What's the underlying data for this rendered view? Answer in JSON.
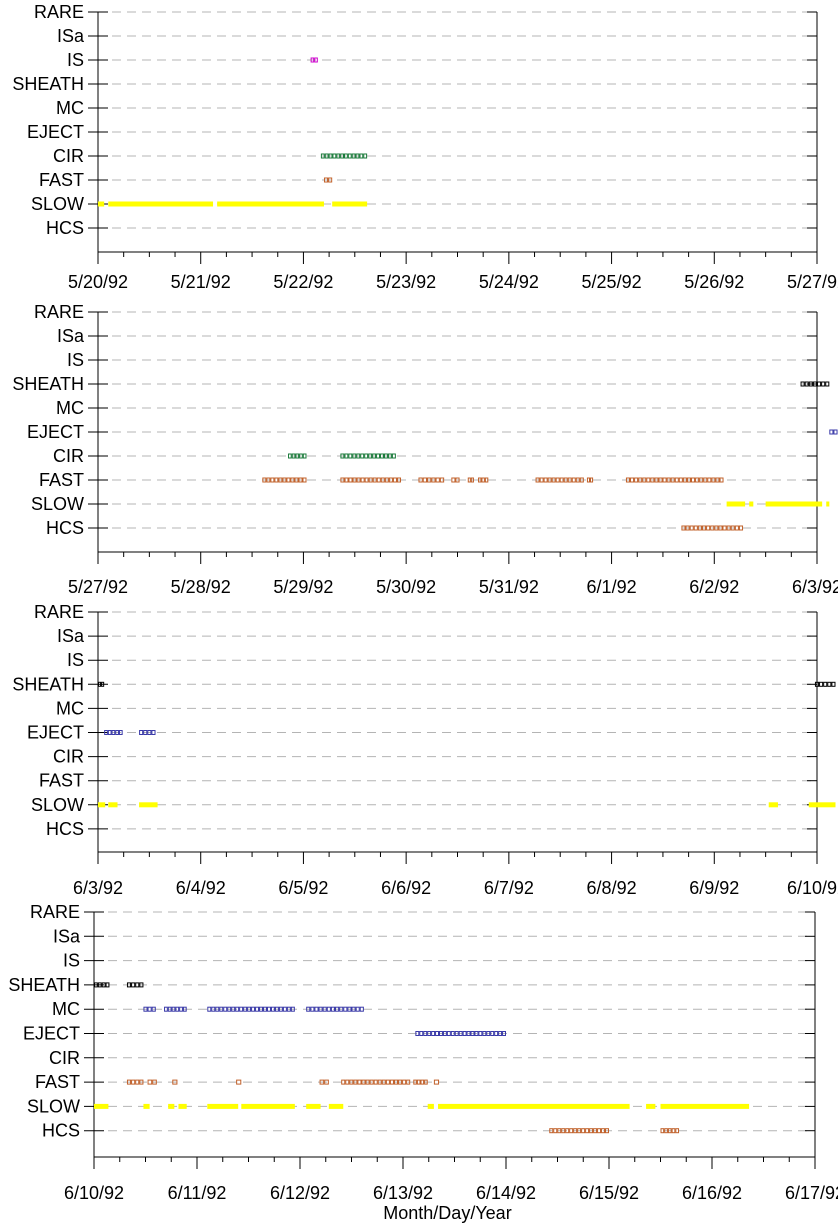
{
  "chart_data": {
    "type": "timeline",
    "categories": [
      "RARE",
      "ISa",
      "IS",
      "SHEATH",
      "MC",
      "EJECT",
      "CIR",
      "FAST",
      "SLOW",
      "HCS"
    ],
    "xlabel": "Month/Day/Year",
    "grid": true,
    "colors": {
      "IS": "#cc00cc",
      "SHEATH": "#000000",
      "MC": "#3a3aa8",
      "EJECT": "#3a3aa8",
      "CIR": "#1a7a3a",
      "FAST": "#c0602a",
      "SLOW": "#ffff00",
      "HCS": "#c0602a"
    },
    "panels": [
      {
        "start_day": 0,
        "tick_labels": [
          "5/20/92",
          "5/21/92",
          "5/22/92",
          "5/23/92",
          "5/24/92",
          "5/25/92",
          "5/26/92",
          "5/27/92"
        ],
        "segments": [
          {
            "cat": "IS",
            "start": 2.07,
            "end": 2.14
          },
          {
            "cat": "CIR",
            "start": 2.17,
            "end": 2.62
          },
          {
            "cat": "FAST",
            "start": 2.2,
            "end": 2.28
          },
          {
            "cat": "SLOW",
            "start": 0.0,
            "end": 0.06
          },
          {
            "cat": "SLOW",
            "start": 0.1,
            "end": 1.12
          },
          {
            "cat": "SLOW",
            "start": 1.16,
            "end": 2.2
          },
          {
            "cat": "SLOW",
            "start": 2.28,
            "end": 2.62
          }
        ]
      },
      {
        "start_day": 7,
        "tick_labels": [
          "5/27/92",
          "5/28/92",
          "5/29/92",
          "5/30/92",
          "5/31/92",
          "6/1/92",
          "6/2/92",
          "6/3/92"
        ],
        "segments": [
          {
            "cat": "SHEATH",
            "start": 6.84,
            "end": 7.12
          },
          {
            "cat": "EJECT",
            "start": 7.12,
            "end": 7.2
          },
          {
            "cat": "CIR",
            "start": 1.85,
            "end": 2.03
          },
          {
            "cat": "CIR",
            "start": 2.36,
            "end": 2.9
          },
          {
            "cat": "FAST",
            "start": 1.6,
            "end": 2.03
          },
          {
            "cat": "FAST",
            "start": 2.36,
            "end": 2.95
          },
          {
            "cat": "FAST",
            "start": 3.12,
            "end": 3.37
          },
          {
            "cat": "FAST",
            "start": 3.44,
            "end": 3.52
          },
          {
            "cat": "FAST",
            "start": 3.6,
            "end": 3.66
          },
          {
            "cat": "FAST",
            "start": 3.7,
            "end": 3.8
          },
          {
            "cat": "FAST",
            "start": 4.26,
            "end": 4.73
          },
          {
            "cat": "FAST",
            "start": 4.76,
            "end": 4.82
          },
          {
            "cat": "FAST",
            "start": 5.14,
            "end": 6.09
          },
          {
            "cat": "SLOW",
            "start": 6.12,
            "end": 6.3
          },
          {
            "cat": "SLOW",
            "start": 6.34,
            "end": 6.38
          },
          {
            "cat": "SLOW",
            "start": 6.5,
            "end": 7.05
          },
          {
            "cat": "SLOW",
            "start": 7.09,
            "end": 7.12
          },
          {
            "cat": "HCS",
            "start": 5.68,
            "end": 6.28
          }
        ]
      },
      {
        "start_day": 14,
        "tick_labels": [
          "6/3/92",
          "6/4/92",
          "6/5/92",
          "6/6/92",
          "6/7/92",
          "6/8/92",
          "6/9/92",
          "6/10/92"
        ],
        "segments": [
          {
            "cat": "SHEATH",
            "start": 0.0,
            "end": 0.06
          },
          {
            "cat": "SHEATH",
            "start": 6.98,
            "end": 7.18
          },
          {
            "cat": "EJECT",
            "start": 0.06,
            "end": 0.24
          },
          {
            "cat": "EJECT",
            "start": 0.4,
            "end": 0.56
          },
          {
            "cat": "SLOW",
            "start": 0.0,
            "end": 0.07
          },
          {
            "cat": "SLOW",
            "start": 0.1,
            "end": 0.19
          },
          {
            "cat": "SLOW",
            "start": 0.4,
            "end": 0.58
          },
          {
            "cat": "SLOW",
            "start": 6.53,
            "end": 6.62
          },
          {
            "cat": "SLOW",
            "start": 6.92,
            "end": 7.18
          }
        ]
      },
      {
        "start_day": 21,
        "tick_labels": [
          "6/10/92",
          "6/11/92",
          "6/12/92",
          "6/13/92",
          "6/14/92",
          "6/15/92",
          "6/16/92",
          "6/17/92"
        ],
        "segments": [
          {
            "cat": "SHEATH",
            "start": 0.0,
            "end": 0.15
          },
          {
            "cat": "SHEATH",
            "start": 0.32,
            "end": 0.48
          },
          {
            "cat": "MC",
            "start": 0.48,
            "end": 0.6
          },
          {
            "cat": "MC",
            "start": 0.68,
            "end": 0.9
          },
          {
            "cat": "MC",
            "start": 1.1,
            "end": 1.95
          },
          {
            "cat": "MC",
            "start": 2.06,
            "end": 2.62
          },
          {
            "cat": "EJECT",
            "start": 3.12,
            "end": 4.0
          },
          {
            "cat": "FAST",
            "start": 0.32,
            "end": 0.48
          },
          {
            "cat": "FAST",
            "start": 0.52,
            "end": 0.61
          },
          {
            "cat": "FAST",
            "start": 0.76,
            "end": 0.81
          },
          {
            "cat": "FAST",
            "start": 1.38,
            "end": 1.43
          },
          {
            "cat": "FAST",
            "start": 2.19,
            "end": 2.28
          },
          {
            "cat": "FAST",
            "start": 2.4,
            "end": 3.07
          },
          {
            "cat": "FAST",
            "start": 3.1,
            "end": 3.24
          },
          {
            "cat": "FAST",
            "start": 3.3,
            "end": 3.35
          },
          {
            "cat": "SLOW",
            "start": 0.0,
            "end": 0.14
          },
          {
            "cat": "SLOW",
            "start": 0.48,
            "end": 0.54
          },
          {
            "cat": "SLOW",
            "start": 0.72,
            "end": 0.78
          },
          {
            "cat": "SLOW",
            "start": 0.82,
            "end": 0.9
          },
          {
            "cat": "SLOW",
            "start": 1.1,
            "end": 1.4
          },
          {
            "cat": "SLOW",
            "start": 1.43,
            "end": 1.95
          },
          {
            "cat": "SLOW",
            "start": 2.06,
            "end": 2.2
          },
          {
            "cat": "SLOW",
            "start": 2.28,
            "end": 2.42
          },
          {
            "cat": "SLOW",
            "start": 3.24,
            "end": 3.3
          },
          {
            "cat": "SLOW",
            "start": 3.34,
            "end": 5.2
          },
          {
            "cat": "SLOW",
            "start": 5.36,
            "end": 5.45
          },
          {
            "cat": "SLOW",
            "start": 5.5,
            "end": 6.36
          },
          {
            "cat": "HCS",
            "start": 4.42,
            "end": 5.0
          },
          {
            "cat": "HCS",
            "start": 5.5,
            "end": 5.68
          }
        ]
      }
    ]
  }
}
